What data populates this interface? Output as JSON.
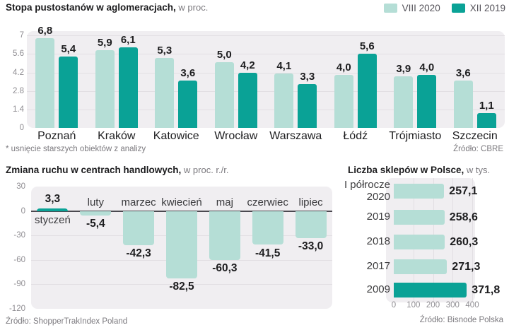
{
  "colors": {
    "light_teal": "#b5ded6",
    "dark_teal": "#0aa296",
    "panel_bg": "#f0eef1",
    "grid": "#e2dfe3",
    "zero_line": "#4b4950"
  },
  "chart_data": [
    {
      "id": "vacancy",
      "type": "bar",
      "title": "Stopa pustostanów w aglomeracjach,",
      "subtitle": " w proc.",
      "legend": [
        {
          "label": "VIII 2020",
          "color": "#b5ded6"
        },
        {
          "label": "XII 2019",
          "color": "#0aa296"
        }
      ],
      "categories": [
        "Poznań",
        "Kraków",
        "Katowice",
        "Wrocław",
        "Warszawa",
        "Łódź",
        "Trójmiasto",
        "Szczecin"
      ],
      "series": [
        {
          "name": "VIII 2020",
          "values": [
            6.8,
            5.9,
            5.3,
            5.0,
            4.1,
            4.0,
            3.9,
            3.6
          ],
          "labels": [
            "6,8",
            "5,9",
            "5,3",
            "5,0",
            "4,1",
            "4,0",
            "3,9",
            "3,6"
          ]
        },
        {
          "name": "XII 2019",
          "values": [
            5.4,
            6.1,
            3.6,
            4.2,
            3.3,
            5.6,
            4.0,
            1.1
          ],
          "labels": [
            "5,4",
            "6,1",
            "3,6",
            "4,2",
            "3,3",
            "5,6",
            "4,0",
            "1,1"
          ]
        }
      ],
      "yticks": [
        7,
        5.6,
        4.2,
        2.8,
        1.4,
        0
      ],
      "ytick_labels": [
        "7",
        "5.6",
        "4.2",
        "2.8",
        "1.4",
        "0"
      ],
      "ylim": [
        0,
        7.33
      ],
      "grid": true,
      "legend_position": "top-right",
      "footnote": "* usnięcie starszych obiektów z analizy",
      "source": "Źródło: CBRE"
    },
    {
      "id": "traffic",
      "type": "bar",
      "title": "Zmiana ruchu w centrach handlowych,",
      "subtitle": " w proc. r./r.",
      "categories": [
        "styczeń",
        "luty",
        "marzec",
        "kwiecień",
        "maj",
        "czerwiec",
        "lipiec"
      ],
      "values": [
        3.3,
        -5.4,
        -42.3,
        -82.5,
        -60.3,
        -41.5,
        -33.0
      ],
      "labels": [
        "3,3",
        "-5,4",
        "-42,3",
        "-82,5",
        "-60,3",
        "-41,5",
        "-33,0"
      ],
      "yticks": [
        30,
        0,
        -30,
        -60,
        -90,
        -120
      ],
      "ytick_labels": [
        "30",
        "0",
        "-30",
        "-60",
        "-90",
        "-120"
      ],
      "ylim": [
        -120,
        30
      ],
      "grid": true,
      "highlight_index": 0,
      "source": "Źródło: ShopperTrakIndex Poland"
    },
    {
      "id": "shops",
      "type": "bar-horizontal",
      "title": "Liczba sklepów w Polsce,",
      "subtitle": " w tys.",
      "categories": [
        "I półrocze\n2020",
        "2019",
        "2018",
        "2017",
        "2009"
      ],
      "values": [
        257.1,
        258.6,
        260.3,
        271.3,
        371.8
      ],
      "labels": [
        "257,1",
        "258,6",
        "260,3",
        "271,3",
        "371,8"
      ],
      "xticks": [
        0,
        100,
        200,
        300,
        400
      ],
      "xtick_labels": [
        "0",
        "100",
        "200",
        "300",
        "400"
      ],
      "xlim": [
        0,
        400
      ],
      "grid": true,
      "highlight_index": 4,
      "source": "Źródło: Bisnode Polska"
    }
  ]
}
